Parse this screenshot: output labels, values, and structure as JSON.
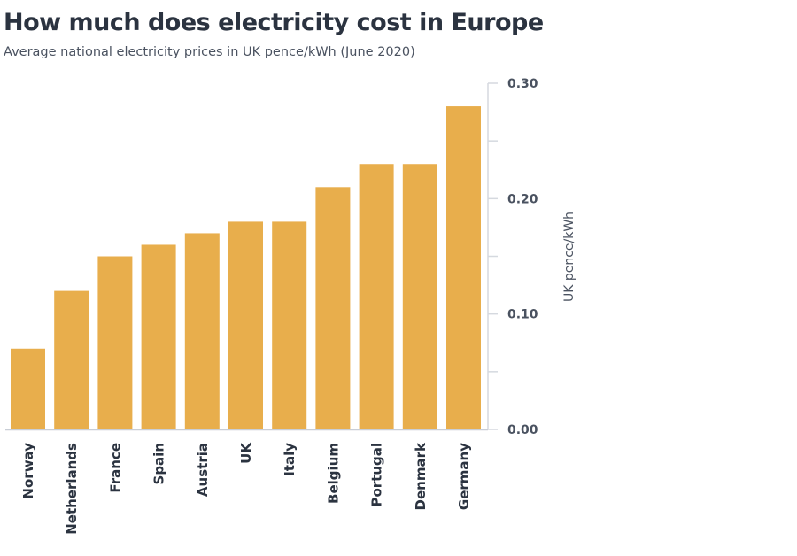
{
  "chart_data": {
    "type": "bar",
    "title": "How much does electricity cost in Europe",
    "subtitle": "Average national electricity prices in UK pence/kWh (June 2020)",
    "xlabel": "",
    "ylabel": "UK pence/kWh",
    "ylim": [
      0,
      0.3
    ],
    "yticks": [
      "0.00",
      "0.10",
      "0.20",
      "0.30"
    ],
    "y_axis_side": "right",
    "grid": false,
    "bar_color": "#E8AE4C",
    "categories": [
      "Norway",
      "Netherlands",
      "France",
      "Spain",
      "Austria",
      "UK",
      "Italy",
      "Belgium",
      "Portugal",
      "Denmark",
      "Germany"
    ],
    "values": [
      0.07,
      0.12,
      0.15,
      0.16,
      0.17,
      0.18,
      0.18,
      0.21,
      0.23,
      0.23,
      0.28
    ]
  }
}
